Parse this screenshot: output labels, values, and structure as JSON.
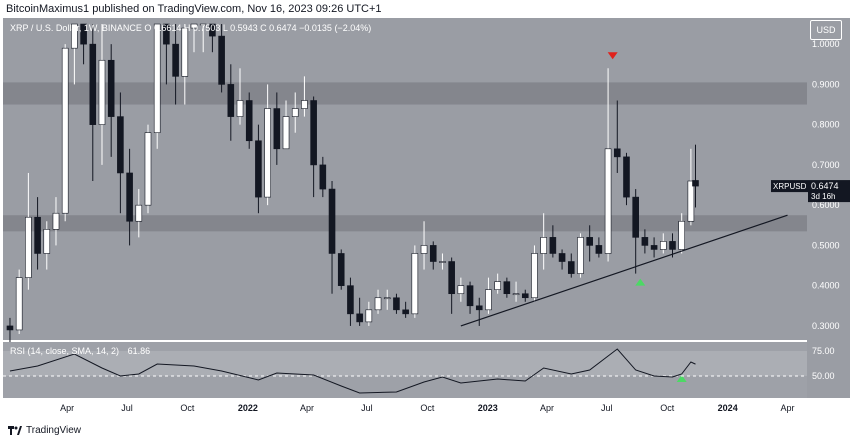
{
  "header": {
    "published": "BitcoinMaximus1 published on TradingView.com, Nov 16, 2023 09:26 UTC+1"
  },
  "symbol_bar": {
    "text": "XRP / U.S. Dollar, 1W, BINANCE  O 0.6614  H 0.7503  L 0.5943  C 0.6474  −0.0135 (−2.04%)"
  },
  "price_axis": {
    "currency": "USD",
    "ticks": [
      "1.0000",
      "0.9000",
      "0.8000",
      "0.7000",
      "0.6000",
      "0.5000",
      "0.4000",
      "0.3000"
    ]
  },
  "last_price": {
    "label": "XRPUSD",
    "value": "0.6474",
    "countdown": "3d 16h"
  },
  "time_axis": {
    "labels": [
      "Apr",
      "Jul",
      "Oct",
      "2022",
      "Apr",
      "Jul",
      "Oct",
      "2023",
      "Apr",
      "Jul",
      "Oct",
      "2024",
      "Apr"
    ]
  },
  "rsi": {
    "title": "RSI (14, close, SMA, 14, 2)",
    "value": "61.86",
    "ticks": [
      "75.00",
      "50.00"
    ]
  },
  "footer": {
    "brand": "TradingView"
  },
  "colors": {
    "background": "#9a9da4",
    "panel": "#9ea1a8",
    "zone": "#80838a",
    "candle_up": "#ffffff",
    "candle_down": "#131722",
    "arrow_down": "#e0221c",
    "arrow_up": "#4cd964",
    "support_line": "#131722"
  },
  "chart_data": {
    "type": "candlestick",
    "symbol": "XRPUSD",
    "interval": "1W",
    "ylim": [
      0.27,
      1.06
    ],
    "horizontal_zones": [
      {
        "from": 0.85,
        "to": 0.905
      },
      {
        "from": 0.535,
        "to": 0.575
      }
    ],
    "trendline": {
      "from": {
        "date": "2022-11-21",
        "price": 0.3
      },
      "to": {
        "date": "2024-04-01",
        "price": 0.575
      }
    },
    "markers": [
      {
        "type": "arrow-down",
        "date": "2023-07-10",
        "price": 0.97
      },
      {
        "type": "arrow-up",
        "date": "2023-08-21",
        "price": 0.41
      },
      {
        "type": "arrow-up",
        "date": "2023-10-23",
        "rsi": 48
      }
    ],
    "candles": [
      {
        "date": "2021-01-04",
        "open": 0.3,
        "high": 0.32,
        "low": 0.26,
        "close": 0.29
      },
      {
        "date": "2021-01-18",
        "open": 0.29,
        "high": 0.44,
        "low": 0.28,
        "close": 0.42
      },
      {
        "date": "2021-02-01",
        "open": 0.42,
        "high": 0.68,
        "low": 0.39,
        "close": 0.57
      },
      {
        "date": "2021-02-15",
        "open": 0.57,
        "high": 0.62,
        "low": 0.44,
        "close": 0.48
      },
      {
        "date": "2021-03-01",
        "open": 0.48,
        "high": 0.56,
        "low": 0.44,
        "close": 0.54
      },
      {
        "date": "2021-03-15",
        "open": 0.54,
        "high": 0.62,
        "low": 0.5,
        "close": 0.58
      },
      {
        "date": "2021-03-29",
        "open": 0.58,
        "high": 1.0,
        "low": 0.56,
        "close": 0.99
      },
      {
        "date": "2021-04-12",
        "open": 0.99,
        "high": 1.05,
        "low": 0.9,
        "close": 1.05
      },
      {
        "date": "2021-04-26",
        "open": 1.05,
        "high": 1.05,
        "low": 0.95,
        "close": 1.0
      },
      {
        "date": "2021-05-10",
        "open": 1.0,
        "high": 1.05,
        "low": 0.66,
        "close": 0.8
      },
      {
        "date": "2021-05-24",
        "open": 0.8,
        "high": 1.05,
        "low": 0.7,
        "close": 0.96
      },
      {
        "date": "2021-06-07",
        "open": 0.96,
        "high": 1.0,
        "low": 0.72,
        "close": 0.82
      },
      {
        "date": "2021-06-21",
        "open": 0.82,
        "high": 0.88,
        "low": 0.58,
        "close": 0.68
      },
      {
        "date": "2021-07-05",
        "open": 0.68,
        "high": 0.74,
        "low": 0.5,
        "close": 0.56
      },
      {
        "date": "2021-07-19",
        "open": 0.56,
        "high": 0.64,
        "low": 0.52,
        "close": 0.6
      },
      {
        "date": "2021-08-02",
        "open": 0.6,
        "high": 0.8,
        "low": 0.58,
        "close": 0.78
      },
      {
        "date": "2021-08-16",
        "open": 0.78,
        "high": 1.05,
        "low": 0.74,
        "close": 1.05
      },
      {
        "date": "2021-08-30",
        "open": 1.05,
        "high": 1.05,
        "low": 0.9,
        "close": 1.0
      },
      {
        "date": "2021-09-13",
        "open": 1.0,
        "high": 1.05,
        "low": 0.85,
        "close": 0.92
      },
      {
        "date": "2021-09-27",
        "open": 0.92,
        "high": 1.05,
        "low": 0.85,
        "close": 1.04
      },
      {
        "date": "2021-10-11",
        "open": 1.04,
        "high": 1.05,
        "low": 0.98,
        "close": 1.05
      },
      {
        "date": "2021-10-25",
        "open": 1.05,
        "high": 1.05,
        "low": 0.98,
        "close": 1.05
      },
      {
        "date": "2021-11-08",
        "open": 1.05,
        "high": 1.05,
        "low": 0.98,
        "close": 1.02
      },
      {
        "date": "2021-11-22",
        "open": 1.02,
        "high": 1.05,
        "low": 0.88,
        "close": 0.9
      },
      {
        "date": "2021-12-06",
        "open": 0.9,
        "high": 0.95,
        "low": 0.76,
        "close": 0.82
      },
      {
        "date": "2021-12-20",
        "open": 0.82,
        "high": 0.94,
        "low": 0.8,
        "close": 0.86
      },
      {
        "date": "2022-01-03",
        "open": 0.86,
        "high": 0.88,
        "low": 0.74,
        "close": 0.76
      },
      {
        "date": "2022-01-17",
        "open": 0.76,
        "high": 0.8,
        "low": 0.58,
        "close": 0.62
      },
      {
        "date": "2022-01-31",
        "open": 0.62,
        "high": 0.9,
        "low": 0.6,
        "close": 0.84
      },
      {
        "date": "2022-02-14",
        "open": 0.84,
        "high": 0.88,
        "low": 0.7,
        "close": 0.74
      },
      {
        "date": "2022-02-28",
        "open": 0.74,
        "high": 0.86,
        "low": 0.74,
        "close": 0.82
      },
      {
        "date": "2022-03-14",
        "open": 0.82,
        "high": 0.88,
        "low": 0.78,
        "close": 0.84
      },
      {
        "date": "2022-03-28",
        "open": 0.84,
        "high": 0.92,
        "low": 0.82,
        "close": 0.86
      },
      {
        "date": "2022-04-11",
        "open": 0.86,
        "high": 0.87,
        "low": 0.62,
        "close": 0.7
      },
      {
        "date": "2022-04-25",
        "open": 0.7,
        "high": 0.72,
        "low": 0.62,
        "close": 0.64
      },
      {
        "date": "2022-05-09",
        "open": 0.64,
        "high": 0.66,
        "low": 0.38,
        "close": 0.48
      },
      {
        "date": "2022-05-23",
        "open": 0.48,
        "high": 0.49,
        "low": 0.39,
        "close": 0.4
      },
      {
        "date": "2022-06-06",
        "open": 0.4,
        "high": 0.42,
        "low": 0.3,
        "close": 0.33
      },
      {
        "date": "2022-06-20",
        "open": 0.33,
        "high": 0.37,
        "low": 0.3,
        "close": 0.31
      },
      {
        "date": "2022-07-04",
        "open": 0.31,
        "high": 0.36,
        "low": 0.3,
        "close": 0.34
      },
      {
        "date": "2022-07-18",
        "open": 0.34,
        "high": 0.39,
        "low": 0.33,
        "close": 0.37
      },
      {
        "date": "2022-08-01",
        "open": 0.37,
        "high": 0.39,
        "low": 0.34,
        "close": 0.37
      },
      {
        "date": "2022-08-15",
        "open": 0.37,
        "high": 0.38,
        "low": 0.33,
        "close": 0.34
      },
      {
        "date": "2022-08-29",
        "open": 0.34,
        "high": 0.36,
        "low": 0.32,
        "close": 0.33
      },
      {
        "date": "2022-09-12",
        "open": 0.33,
        "high": 0.5,
        "low": 0.32,
        "close": 0.48
      },
      {
        "date": "2022-09-26",
        "open": 0.48,
        "high": 0.56,
        "low": 0.44,
        "close": 0.5
      },
      {
        "date": "2022-10-10",
        "open": 0.5,
        "high": 0.51,
        "low": 0.44,
        "close": 0.46
      },
      {
        "date": "2022-10-24",
        "open": 0.46,
        "high": 0.48,
        "low": 0.44,
        "close": 0.46
      },
      {
        "date": "2022-11-07",
        "open": 0.46,
        "high": 0.47,
        "low": 0.33,
        "close": 0.38
      },
      {
        "date": "2022-11-21",
        "open": 0.38,
        "high": 0.42,
        "low": 0.36,
        "close": 0.4
      },
      {
        "date": "2022-12-05",
        "open": 0.4,
        "high": 0.41,
        "low": 0.33,
        "close": 0.35
      },
      {
        "date": "2022-12-19",
        "open": 0.35,
        "high": 0.37,
        "low": 0.3,
        "close": 0.34
      },
      {
        "date": "2023-01-02",
        "open": 0.34,
        "high": 0.42,
        "low": 0.33,
        "close": 0.39
      },
      {
        "date": "2023-01-16",
        "open": 0.39,
        "high": 0.43,
        "low": 0.38,
        "close": 0.41
      },
      {
        "date": "2023-01-30",
        "open": 0.41,
        "high": 0.42,
        "low": 0.37,
        "close": 0.38
      },
      {
        "date": "2023-02-13",
        "open": 0.38,
        "high": 0.41,
        "low": 0.36,
        "close": 0.38
      },
      {
        "date": "2023-02-27",
        "open": 0.38,
        "high": 0.39,
        "low": 0.36,
        "close": 0.37
      },
      {
        "date": "2023-03-13",
        "open": 0.37,
        "high": 0.5,
        "low": 0.36,
        "close": 0.48
      },
      {
        "date": "2023-03-27",
        "open": 0.48,
        "high": 0.58,
        "low": 0.44,
        "close": 0.52
      },
      {
        "date": "2023-04-10",
        "open": 0.52,
        "high": 0.55,
        "low": 0.47,
        "close": 0.48
      },
      {
        "date": "2023-04-24",
        "open": 0.48,
        "high": 0.49,
        "low": 0.44,
        "close": 0.46
      },
      {
        "date": "2023-05-08",
        "open": 0.46,
        "high": 0.48,
        "low": 0.42,
        "close": 0.43
      },
      {
        "date": "2023-05-22",
        "open": 0.43,
        "high": 0.53,
        "low": 0.42,
        "close": 0.52
      },
      {
        "date": "2023-06-05",
        "open": 0.52,
        "high": 0.55,
        "low": 0.46,
        "close": 0.5
      },
      {
        "date": "2023-06-19",
        "open": 0.5,
        "high": 0.52,
        "low": 0.47,
        "close": 0.48
      },
      {
        "date": "2023-07-03",
        "open": 0.48,
        "high": 0.94,
        "low": 0.46,
        "close": 0.74
      },
      {
        "date": "2023-07-17",
        "open": 0.74,
        "high": 0.86,
        "low": 0.68,
        "close": 0.72
      },
      {
        "date": "2023-07-31",
        "open": 0.72,
        "high": 0.73,
        "low": 0.6,
        "close": 0.62
      },
      {
        "date": "2023-08-14",
        "open": 0.62,
        "high": 0.64,
        "low": 0.43,
        "close": 0.52
      },
      {
        "date": "2023-08-28",
        "open": 0.52,
        "high": 0.54,
        "low": 0.48,
        "close": 0.5
      },
      {
        "date": "2023-09-11",
        "open": 0.5,
        "high": 0.52,
        "low": 0.47,
        "close": 0.49
      },
      {
        "date": "2023-09-25",
        "open": 0.49,
        "high": 0.53,
        "low": 0.48,
        "close": 0.51
      },
      {
        "date": "2023-10-09",
        "open": 0.51,
        "high": 0.53,
        "low": 0.47,
        "close": 0.49
      },
      {
        "date": "2023-10-23",
        "open": 0.49,
        "high": 0.58,
        "low": 0.48,
        "close": 0.56
      },
      {
        "date": "2023-11-06",
        "open": 0.56,
        "high": 0.74,
        "low": 0.55,
        "close": 0.66
      },
      {
        "date": "2023-11-13",
        "open": 0.6614,
        "high": 0.7503,
        "low": 0.5943,
        "close": 0.6474
      }
    ],
    "rsi_series": [
      {
        "date": "2021-01-04",
        "value": 55
      },
      {
        "date": "2021-02-15",
        "value": 60
      },
      {
        "date": "2021-04-12",
        "value": 72
      },
      {
        "date": "2021-05-24",
        "value": 58
      },
      {
        "date": "2021-06-21",
        "value": 50
      },
      {
        "date": "2021-07-19",
        "value": 52
      },
      {
        "date": "2021-08-16",
        "value": 62
      },
      {
        "date": "2021-10-11",
        "value": 60
      },
      {
        "date": "2021-11-22",
        "value": 55
      },
      {
        "date": "2022-01-17",
        "value": 46
      },
      {
        "date": "2022-02-14",
        "value": 53
      },
      {
        "date": "2022-04-11",
        "value": 51
      },
      {
        "date": "2022-05-23",
        "value": 40
      },
      {
        "date": "2022-06-20",
        "value": 33
      },
      {
        "date": "2022-08-15",
        "value": 34
      },
      {
        "date": "2022-09-26",
        "value": 44
      },
      {
        "date": "2022-10-24",
        "value": 49
      },
      {
        "date": "2022-11-21",
        "value": 43
      },
      {
        "date": "2023-01-16",
        "value": 47
      },
      {
        "date": "2023-02-27",
        "value": 45
      },
      {
        "date": "2023-03-27",
        "value": 58
      },
      {
        "date": "2023-05-08",
        "value": 52
      },
      {
        "date": "2023-06-05",
        "value": 56
      },
      {
        "date": "2023-07-17",
        "value": 77
      },
      {
        "date": "2023-08-14",
        "value": 56
      },
      {
        "date": "2023-09-11",
        "value": 50
      },
      {
        "date": "2023-10-09",
        "value": 49
      },
      {
        "date": "2023-10-23",
        "value": 52
      },
      {
        "date": "2023-11-06",
        "value": 64
      },
      {
        "date": "2023-11-13",
        "value": 61.86
      }
    ],
    "rsi_ylim": [
      30,
      82
    ]
  }
}
